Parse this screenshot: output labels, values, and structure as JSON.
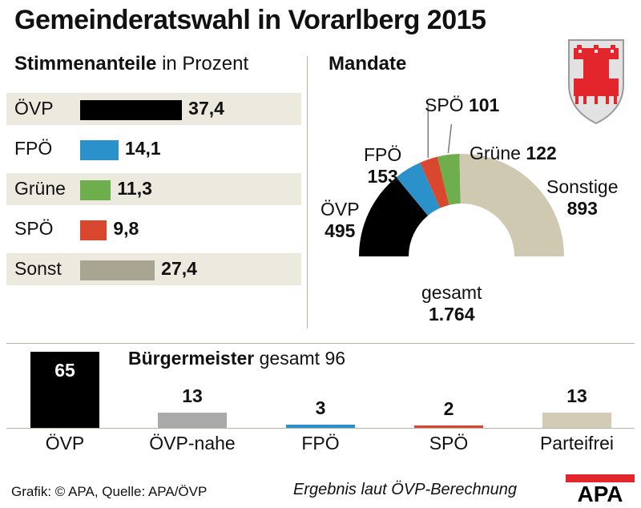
{
  "title": "Gemeinderatswahl in Vorarlberg 2015",
  "votes_section": {
    "heading_bold": "Stimmenanteile",
    "heading_rest": "in Prozent"
  },
  "seats_section": {
    "heading": "Mandate",
    "total_label": "gesamt",
    "total_value": "1.764"
  },
  "mayor_section": {
    "heading_bold": "Bürgermeister",
    "heading_rest": "gesamt 96"
  },
  "footer": {
    "source": "Grafik: © APA, Quelle: APA/ÖVP",
    "note": "Ergebnis laut ÖVP-Berechnung",
    "logo_text": "APA"
  },
  "colors": {
    "ovp": "#000000",
    "fpo": "#2b91cb",
    "gruene": "#6eae4c",
    "spo": "#d8472e",
    "sonst": "#a8a592",
    "sonstige_seats": "#d0c9b2",
    "ovp_nahe": "#a9a9a9",
    "parteifrei": "#d3cbb3"
  },
  "chart_data": [
    {
      "type": "bar",
      "title": "Stimmenanteile in Prozent",
      "categories": [
        "ÖVP",
        "FPÖ",
        "Grüne",
        "SPÖ",
        "Sonst"
      ],
      "values": [
        37.4,
        14.1,
        11.3,
        9.8,
        27.4
      ],
      "value_labels": [
        "37,4",
        "14,1",
        "11,3",
        "9,8",
        "27,4"
      ],
      "colors": [
        "#000000",
        "#2b91cb",
        "#6eae4c",
        "#d8472e",
        "#a8a592"
      ],
      "orientation": "horizontal"
    },
    {
      "type": "pie",
      "title": "Mandate",
      "variant": "half-donut",
      "categories": [
        "ÖVP",
        "FPÖ",
        "SPÖ",
        "Grüne",
        "Sonstige"
      ],
      "values": [
        495,
        153,
        101,
        122,
        893
      ],
      "value_labels": [
        "495",
        "153",
        "101",
        "122",
        "893"
      ],
      "colors": [
        "#000000",
        "#2b91cb",
        "#d8472e",
        "#6eae4c",
        "#d0c9b2"
      ],
      "total": 1764
    },
    {
      "type": "bar",
      "title": "Bürgermeister gesamt 96",
      "categories": [
        "ÖVP",
        "ÖVP-nahe",
        "FPÖ",
        "SPÖ",
        "Parteifrei"
      ],
      "values": [
        65,
        13,
        3,
        2,
        13
      ],
      "value_labels": [
        "65",
        "13",
        "3",
        "2",
        "13"
      ],
      "colors": [
        "#000000",
        "#a9a9a9",
        "#2b91cb",
        "#d8472e",
        "#d3cbb3"
      ]
    }
  ]
}
